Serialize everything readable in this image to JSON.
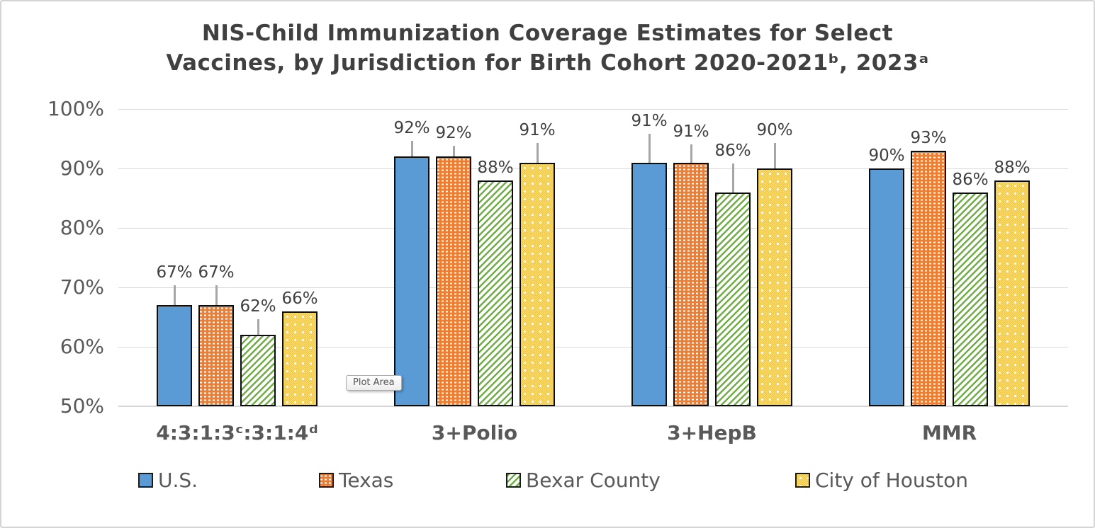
{
  "title": {
    "line1": "NIS-Child Immunization Coverage Estimates for Select",
    "line2": "Vaccines, by Jurisdiction for Birth Cohort 2020-2021ᵇ, 2023ᵃ"
  },
  "plot_area_tooltip": "Plot Area",
  "colors": {
    "us_blue": "#5B9BD5",
    "texas_orange": "#ED7D31",
    "bexar_green": "#70AD47",
    "houston_gold": "#F2C324",
    "bar_border": "#0d0d0d",
    "gridline": "#d9d9d9",
    "error_bar": "#a6a6a6",
    "title_text": "#404040",
    "axis_text": "#595959"
  },
  "chart_data": {
    "type": "bar",
    "title": "NIS-Child Immunization Coverage Estimates for Select Vaccines, by Jurisdiction for Birth Cohort 2020-2021ᵇ, 2023ᵃ",
    "xlabel": "",
    "ylabel": "",
    "ylim": [
      50,
      100
    ],
    "yticks": [
      50,
      60,
      70,
      80,
      90,
      100
    ],
    "ytick_labels": [
      "50%",
      "60%",
      "70%",
      "80%",
      "90%",
      "100%"
    ],
    "grid": true,
    "legend_position": "bottom",
    "bar_label_format": "percent",
    "error_bars": "upper whiskers shown on some bars",
    "categories": [
      "4:3:1:3ᶜ:3:1:4ᵈ",
      "3+Polio",
      "3+HepB",
      "MMR"
    ],
    "series": [
      {
        "name": "U.S.",
        "pattern": "solid",
        "color": "#5B9BD5",
        "values": [
          67,
          92,
          91,
          90
        ],
        "labels": [
          "67%",
          "92%",
          "91%",
          "90%"
        ],
        "upper_whisker_pts": [
          3.4,
          2.6,
          4.8,
          0
        ]
      },
      {
        "name": "Texas",
        "pattern": "dashed",
        "color": "#ED7D31",
        "values": [
          67,
          92,
          91,
          93
        ],
        "labels": [
          "67%",
          "92%",
          "91%",
          "93%"
        ],
        "upper_whisker_pts": [
          3.4,
          1.8,
          3.1,
          0
        ]
      },
      {
        "name": "Bexar County",
        "pattern": "diagonal",
        "color": "#70AD47",
        "values": [
          62,
          88,
          86,
          86
        ],
        "labels": [
          "62%",
          "88%",
          "86%",
          "86%"
        ],
        "upper_whisker_pts": [
          2.6,
          0,
          4.8,
          0
        ]
      },
      {
        "name": "City of Houston",
        "pattern": "dotted",
        "color": "#F2C324",
        "values": [
          66,
          91,
          90,
          88
        ],
        "labels": [
          "66%",
          "91%",
          "90%",
          "88%"
        ],
        "upper_whisker_pts": [
          0,
          3.3,
          4.3,
          0
        ]
      }
    ]
  }
}
